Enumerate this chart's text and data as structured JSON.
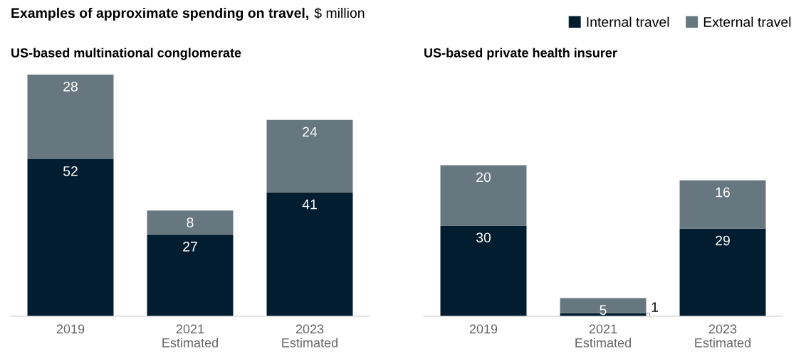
{
  "chart_data": [
    {
      "type": "bar",
      "title": "US-based multinational conglomerate",
      "stacked": true,
      "data_labels": true,
      "legend": "top right",
      "categories": [
        "2019",
        "2021\nEstimated",
        "2023\nEstimated"
      ],
      "series": [
        {
          "name": "Internal travel",
          "color": "#021d2f",
          "values": [
            52,
            27,
            41
          ]
        },
        {
          "name": "External travel",
          "color": "#67777f",
          "values": [
            28,
            8,
            24
          ]
        }
      ],
      "annotations": [
        "Examples of approximate spending on travel,",
        "$ million"
      ]
    },
    {
      "type": "bar",
      "title": "US-based private health insurer",
      "stacked": true,
      "data_labels": true,
      "categories": [
        "2019",
        "2021\nEstimated",
        "2023\nEstimated"
      ],
      "series": [
        {
          "color": "#021d2f",
          "values": [
            30,
            1,
            29
          ]
        },
        {
          "color": "#67777f",
          "values": [
            20,
            5,
            16
          ]
        }
      ]
    }
  ]
}
